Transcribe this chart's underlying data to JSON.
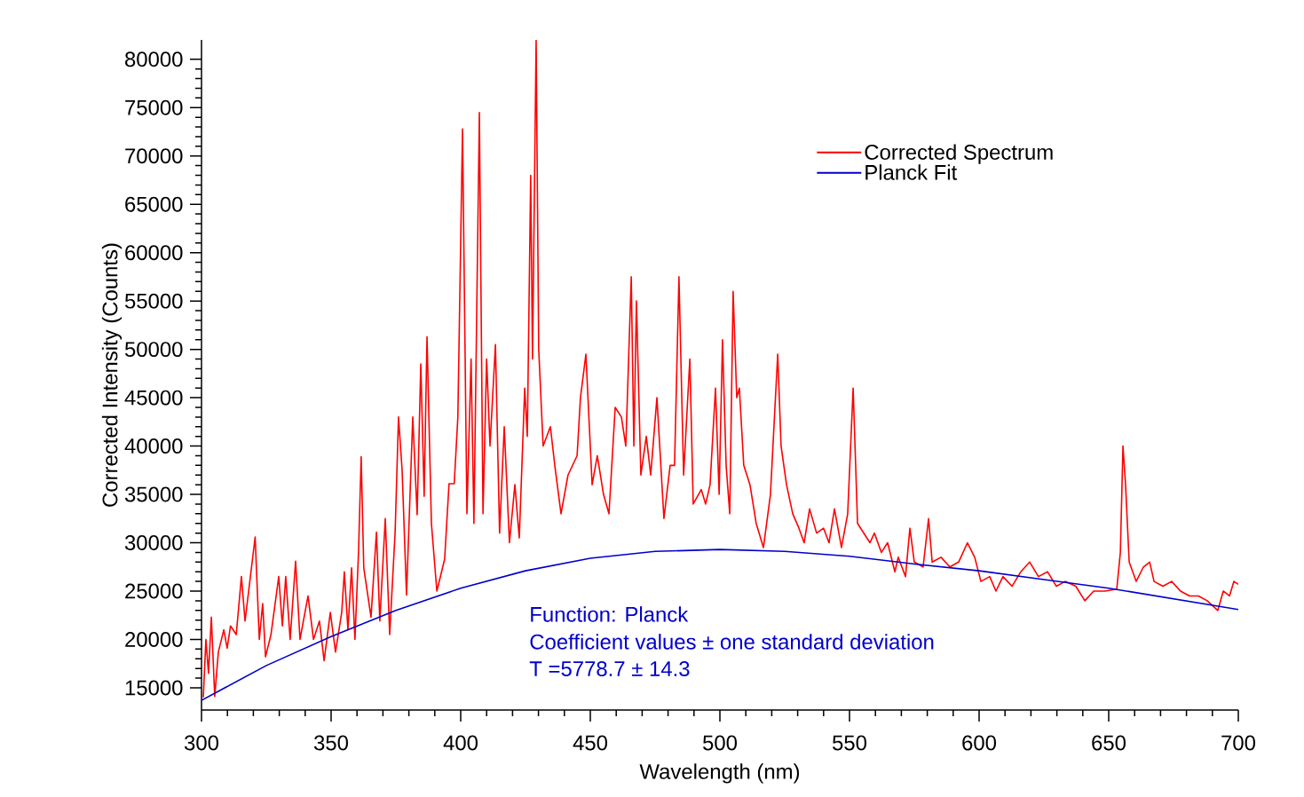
{
  "chart_data": {
    "type": "line",
    "xlabel": "Wavelength (nm)",
    "ylabel": "Corrected Intensity (Counts)",
    "xlim": [
      300,
      700
    ],
    "ylim": [
      12700,
      82000
    ],
    "xticks": [
      300,
      350,
      400,
      450,
      500,
      550,
      600,
      650,
      700
    ],
    "yticks": [
      15000,
      20000,
      25000,
      30000,
      35000,
      40000,
      45000,
      50000,
      55000,
      60000,
      65000,
      70000,
      75000,
      80000
    ],
    "grid": false,
    "legend": "top right",
    "marker": "none",
    "line_style": "solid",
    "annotations": [
      "Function: Planck",
      "Coefficient values ± one standard deviation",
      "T        =5778.7 ± 14.3"
    ],
    "series": [
      {
        "name": "Corrected Spectrum",
        "color": "#ff0000",
        "x": [
          300.7,
          301.7,
          302.7,
          303.8,
          305.1,
          306.5,
          308.6,
          309.9,
          311.2,
          313.4,
          315.4,
          316.8,
          320.7,
          322.3,
          323.6,
          324.7,
          326.8,
          329.8,
          331.2,
          332.5,
          334.2,
          336.3,
          338.0,
          341.1,
          343.2,
          345.5,
          347.3,
          349.7,
          351.7,
          354.1,
          355.1,
          356.5,
          357.9,
          359.2,
          360.6,
          361.6,
          362.6,
          365.4,
          367.5,
          368.8,
          370.9,
          372.6,
          374.7,
          376.0,
          377.4,
          379.1,
          381.5,
          383.2,
          384.6,
          385.9,
          387.0,
          388.7,
          390.8,
          393.8,
          395.5,
          397.5,
          398.9,
          400.7,
          402.4,
          404.0,
          405.1,
          407.2,
          408.6,
          410.0,
          411.3,
          413.4,
          415.0,
          416.8,
          418.8,
          420.9,
          422.6,
          424.7,
          425.7,
          427.0,
          427.7,
          429.1,
          430.1,
          431.8,
          434.6,
          436.3,
          438.7,
          441.4,
          444.9,
          446.2,
          448.3,
          450.7,
          452.7,
          455.1,
          457.2,
          459.6,
          462.0,
          463.7,
          465.8,
          466.8,
          467.8,
          469.5,
          471.6,
          473.3,
          475.7,
          478.4,
          480.8,
          482.5,
          484.2,
          486.0,
          488.4,
          489.7,
          492.8,
          494.5,
          496.2,
          498.3,
          499.7,
          501.0,
          502.4,
          503.8,
          505.1,
          506.5,
          507.5,
          509.2,
          511.6,
          514.0,
          516.8,
          519.5,
          522.3,
          523.6,
          525.7,
          528.1,
          530.5,
          532.5,
          534.6,
          537.3,
          540.0,
          542.1,
          544.2,
          546.9,
          549.3,
          551.4,
          553.1,
          555.5,
          557.9,
          559.6,
          562.3,
          564.7,
          567.5,
          568.8,
          571.6,
          573.3,
          575.0,
          578.4,
          580.5,
          581.9,
          585.3,
          588.7,
          592.1,
          595.5,
          598.3,
          600.7,
          604.1,
          606.5,
          609.2,
          612.7,
          616.1,
          619.5,
          622.9,
          626.4,
          629.8,
          633.2,
          637.3,
          640.8,
          644.2,
          648.6,
          653.1,
          654.5,
          655.5,
          656.5,
          657.9,
          660.6,
          663.4,
          665.8,
          667.5,
          670.9,
          674.3,
          677.7,
          681.2,
          684.6,
          688.0,
          692.1,
          694.2,
          696.6,
          698.3,
          700.0
        ],
        "values": [
          14000,
          20000,
          16500,
          22300,
          14100,
          18700,
          21000,
          19100,
          21400,
          20500,
          26500,
          21900,
          30600,
          20000,
          23700,
          18200,
          20500,
          26500,
          21400,
          26500,
          20000,
          28100,
          20000,
          24500,
          20000,
          21900,
          17800,
          22800,
          18700,
          22800,
          27000,
          21000,
          27400,
          20000,
          29200,
          38900,
          27400,
          22300,
          31100,
          21900,
          32500,
          20500,
          31100,
          43000,
          37500,
          24600,
          43000,
          32900,
          48500,
          34800,
          51300,
          32000,
          25000,
          28300,
          36100,
          36100,
          43000,
          72800,
          33000,
          49000,
          32000,
          74500,
          33000,
          49000,
          40000,
          50500,
          31000,
          42000,
          30000,
          36000,
          30500,
          46000,
          41000,
          68000,
          49000,
          82000,
          50000,
          40000,
          42000,
          38000,
          33000,
          37000,
          39000,
          45000,
          49500,
          36000,
          39000,
          35000,
          33000,
          44000,
          43000,
          40000,
          57500,
          40000,
          55000,
          37000,
          41000,
          37000,
          45000,
          32500,
          38000,
          38000,
          57500,
          37000,
          49000,
          34000,
          35500,
          34000,
          36000,
          46000,
          35000,
          51000,
          38000,
          33000,
          56000,
          45000,
          46000,
          38000,
          36000,
          32000,
          29500,
          35000,
          49500,
          40000,
          36000,
          33000,
          31500,
          30000,
          33500,
          31000,
          31500,
          30000,
          33500,
          29500,
          33000,
          46000,
          32000,
          31000,
          30000,
          31000,
          29000,
          30000,
          27000,
          28500,
          26500,
          31500,
          28000,
          27500,
          32500,
          28000,
          28500,
          27500,
          28000,
          30000,
          28500,
          26000,
          26500,
          25000,
          26500,
          25500,
          27000,
          28000,
          26500,
          27000,
          25500,
          26000,
          25500,
          24000,
          25000,
          25000,
          25200,
          29000,
          40000,
          36000,
          28000,
          26000,
          27500,
          28000,
          26000,
          25500,
          26000,
          25000,
          24500,
          24500,
          24000,
          23000,
          25000,
          24500,
          26000,
          25700
        ]
      },
      {
        "name": "Planck Fit",
        "color": "#0000cc",
        "x": [
          300,
          325,
          350,
          375,
          400,
          425,
          450,
          475,
          500,
          525,
          550,
          575,
          600,
          625,
          650,
          675,
          700
        ],
        "values": [
          13700,
          17300,
          20300,
          23000,
          25300,
          27100,
          28400,
          29100,
          29300,
          29100,
          28600,
          27800,
          27100,
          26200,
          25300,
          24200,
          23100
        ]
      }
    ]
  }
}
